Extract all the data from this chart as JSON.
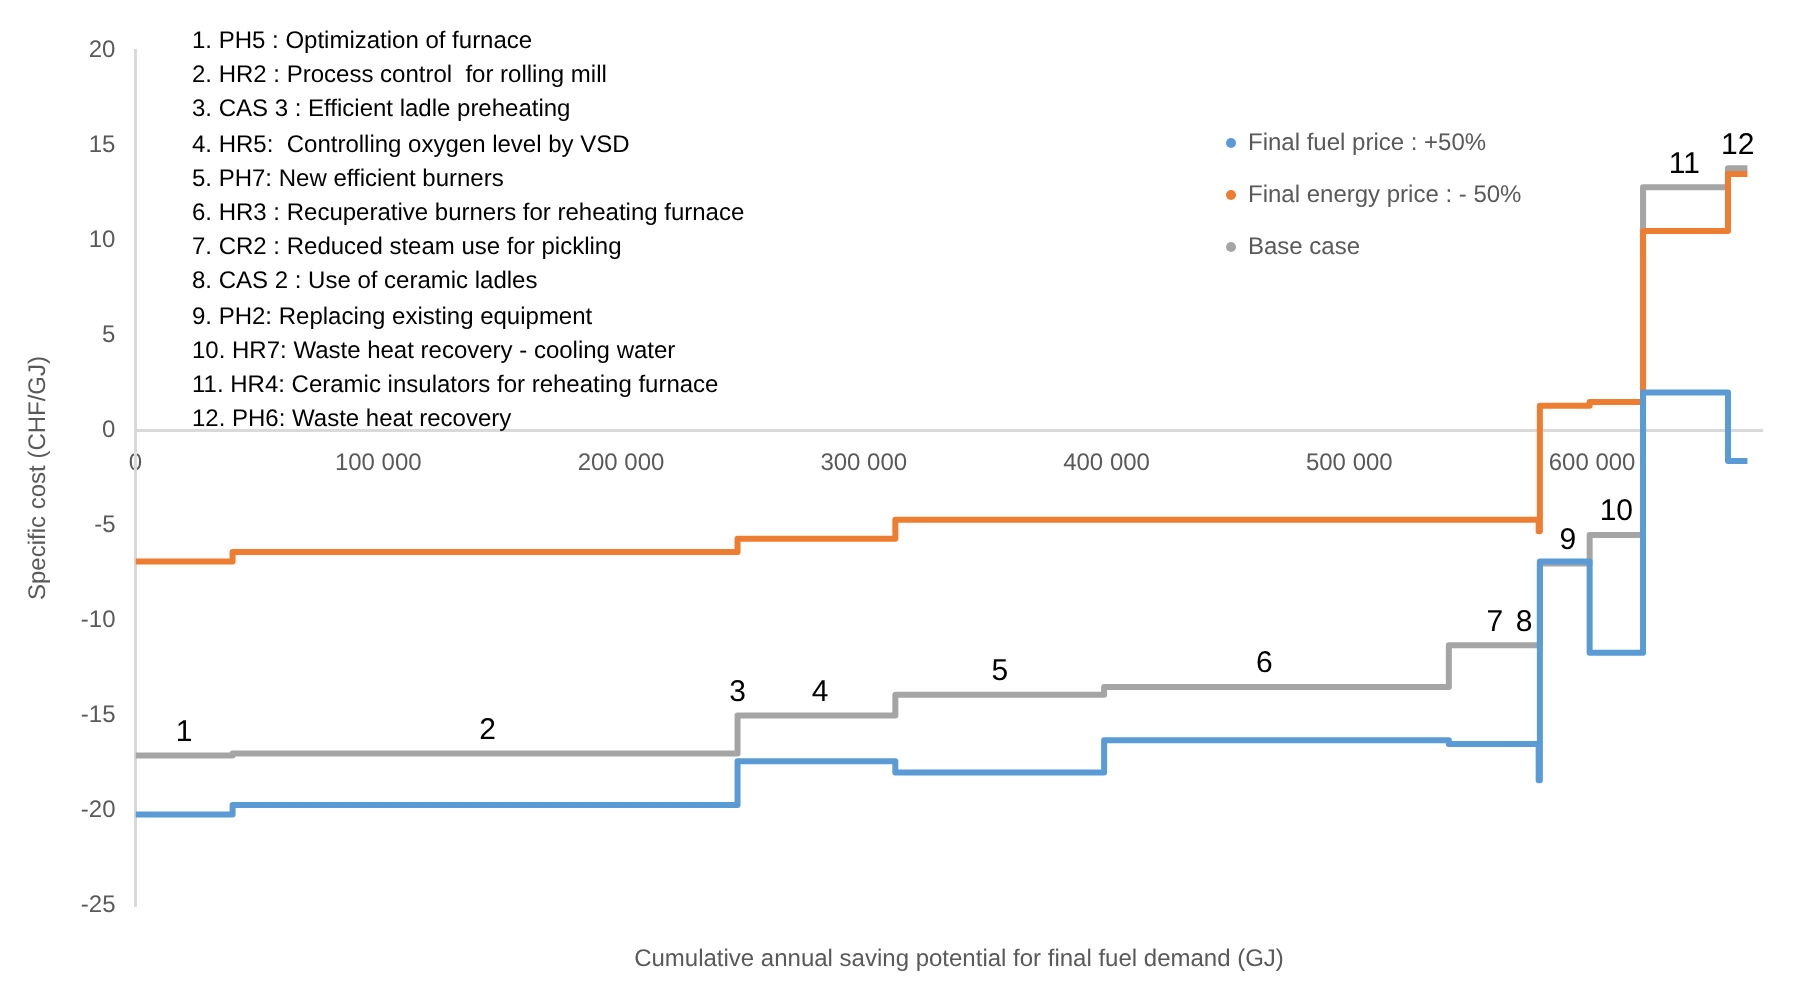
{
  "chart_data": {
    "type": "step",
    "xlabel": "Cumulative annual saving potential for final fuel demand (GJ)",
    "ylabel": "Specific cost (CHF/GJ)",
    "xlim": [
      0,
      670000
    ],
    "xticks": [
      {
        "value": 0,
        "label": "0"
      },
      {
        "value": 100000,
        "label": "100 000"
      },
      {
        "value": 200000,
        "label": "200 000"
      },
      {
        "value": 300000,
        "label": "300 000"
      },
      {
        "value": 400000,
        "label": "400 000"
      },
      {
        "value": 500000,
        "label": "500 000"
      },
      {
        "value": 600000,
        "label": "600 000"
      }
    ],
    "ylim": [
      -25,
      20
    ],
    "yticks": [
      -25,
      -20,
      -15,
      -10,
      -5,
      0,
      5,
      10,
      15,
      20
    ],
    "grid": false,
    "legend": "top right",
    "marker": "none",
    "line_style": "solid",
    "series": [
      {
        "name": "Final fuel price : +50%",
        "color": "#5b9bd5",
        "x": [
          0,
          40000,
          248000,
          313000,
          399000,
          541000,
          578000,
          578500,
          599000,
          621000,
          656000,
          664000
        ],
        "values": [
          -20.2,
          -19.7,
          -17.4,
          -18.0,
          -16.3,
          -16.5,
          -18.4,
          -6.9,
          -11.7,
          2.0,
          -1.6,
          -1.6
        ]
      },
      {
        "name": "Final energy price : - 50%",
        "color": "#ed7d31",
        "x": [
          0,
          40000,
          248000,
          313000,
          399000,
          541000,
          578000,
          578500,
          599000,
          621000,
          656000,
          664000
        ],
        "values": [
          -6.9,
          -6.4,
          -5.7,
          -4.7,
          -4.7,
          -4.7,
          -5.3,
          1.3,
          1.5,
          10.5,
          13.5,
          13.5
        ]
      },
      {
        "name": "Base case",
        "color": "#a5a5a5",
        "x": [
          0,
          40000,
          248000,
          313000,
          399000,
          541000,
          578000,
          578500,
          599000,
          621000,
          656000,
          664000
        ],
        "values": [
          -17.1,
          -17.0,
          -15.0,
          -13.9,
          -13.5,
          -11.3,
          -11.3,
          -7.0,
          -5.5,
          12.8,
          13.8,
          13.8
        ]
      }
    ],
    "annotations": [
      "1. PH5 : Optimization of furnace",
      "2. HR2 : Process control  for rolling mill",
      "3. CAS 3 : Efficient ladle preheating",
      "4. HR5:  Controlling oxygen level by VSD",
      "5. PH7: New efficient burners",
      "6. HR3 : Recuperative burners for reheating furnace",
      "7. CR2 : Reduced steam use for pickling",
      "8. CAS 2 : Use of ceramic ladles",
      "9. PH2: Replacing existing equipment",
      "10. HR7: Waste heat recovery - cooling water",
      "11. HR4: Ceramic insulators for reheating furnace",
      "12. PH6: Waste heat recovery",
      {
        "text": "1",
        "x": 20000,
        "y": -17.1
      },
      {
        "text": "2",
        "x": 145000,
        "y": -17.0
      },
      {
        "text": "3",
        "x": 248000,
        "y": -15.0
      },
      {
        "text": "4",
        "x": 282000,
        "y": -15.0
      },
      {
        "text": "5",
        "x": 356000,
        "y": -13.9
      },
      {
        "text": "6",
        "x": 465000,
        "y": -13.5
      },
      {
        "text": "7",
        "x": 560000,
        "y": -11.3
      },
      {
        "text": "8",
        "x": 572000,
        "y": -11.3
      },
      {
        "text": "9",
        "x": 590000,
        "y": -7.0
      },
      {
        "text": "10",
        "x": 610000,
        "y": -5.5
      },
      {
        "text": "11",
        "x": 638000,
        "y": 12.8
      },
      {
        "text": "12",
        "x": 660000,
        "y": 13.8
      }
    ]
  }
}
